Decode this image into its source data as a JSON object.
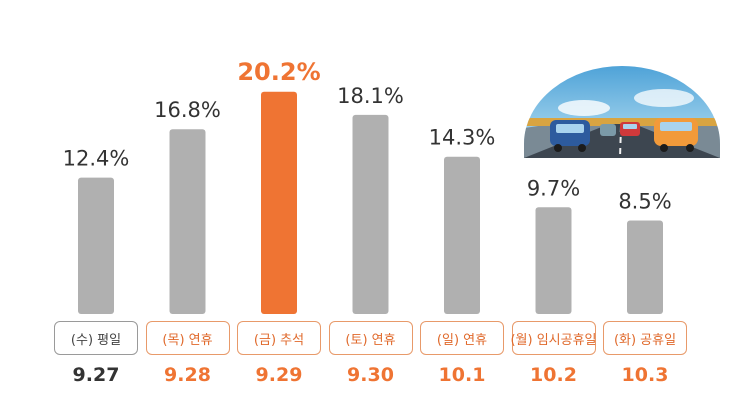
{
  "colors": {
    "bar": "#b0b0b0",
    "highlight": "#ef7433",
    "holiday_text": "#e06a2c",
    "weekday_text": "#333333"
  },
  "illustration": {
    "icon": "highway-traffic-icon"
  },
  "chart_data": {
    "type": "bar",
    "categories": [
      "9.27",
      "9.28",
      "9.29",
      "9.30",
      "10.1",
      "10.2",
      "10.3"
    ],
    "day_labels": [
      "(수) 평일",
      "(목) 연휴",
      "(금) 추석",
      "(토) 연휴",
      "(일) 연휴",
      "(월) 임시공휴일",
      "(화) 공휴일"
    ],
    "values": [
      12.4,
      16.8,
      20.2,
      18.1,
      14.3,
      9.7,
      8.5
    ],
    "value_labels": [
      "12.4%",
      "16.8%",
      "20.2%",
      "18.1%",
      "14.3%",
      "9.7%",
      "8.5%"
    ],
    "highlight_index": 2,
    "weekday_index": 0,
    "ylim": [
      0,
      22
    ],
    "grid": false,
    "title": "",
    "xlabel": "",
    "ylabel": ""
  }
}
